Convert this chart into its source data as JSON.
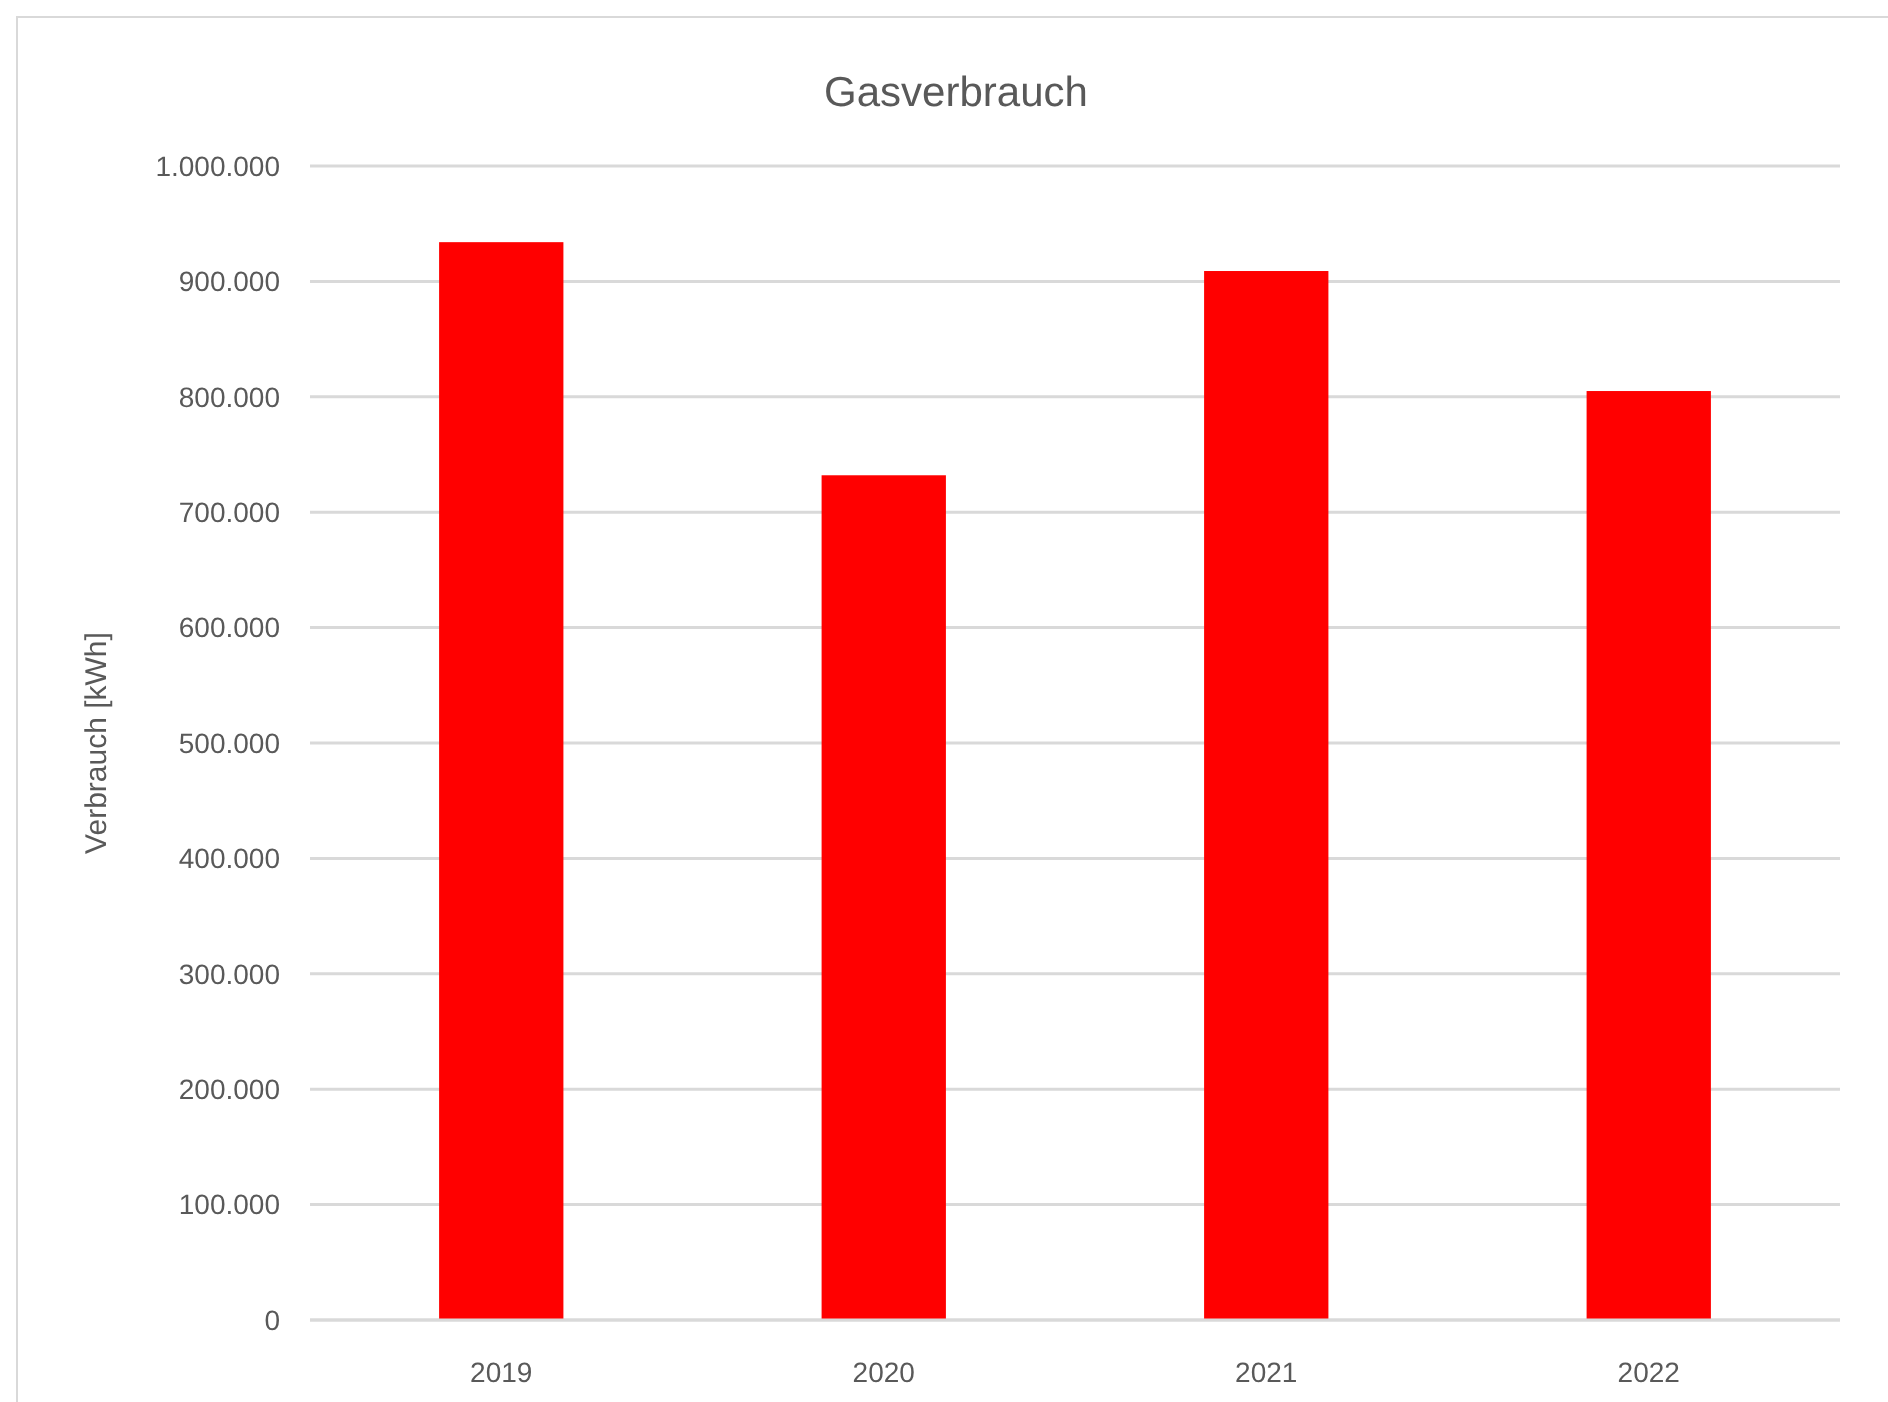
{
  "chart_data": {
    "type": "bar",
    "title": "Gasverbrauch",
    "ylabel": "Verbrauch [kWh]",
    "categories": [
      "2019",
      "2020",
      "2021",
      "2022"
    ],
    "values": [
      934000,
      732000,
      909000,
      805000
    ],
    "color": "#ff0000",
    "ylim": [
      0,
      1000000
    ],
    "yticks": [
      {
        "value": 0,
        "label": "0"
      },
      {
        "value": 100000,
        "label": "100.000"
      },
      {
        "value": 200000,
        "label": "200.000"
      },
      {
        "value": 300000,
        "label": "300.000"
      },
      {
        "value": 400000,
        "label": "400.000"
      },
      {
        "value": 500000,
        "label": "500.000"
      },
      {
        "value": 600000,
        "label": "600.000"
      },
      {
        "value": 700000,
        "label": "700.000"
      },
      {
        "value": 800000,
        "label": "800.000"
      },
      {
        "value": 900000,
        "label": "900.000"
      },
      {
        "value": 1000000,
        "label": "1.000.000"
      }
    ],
    "grid": "y"
  }
}
